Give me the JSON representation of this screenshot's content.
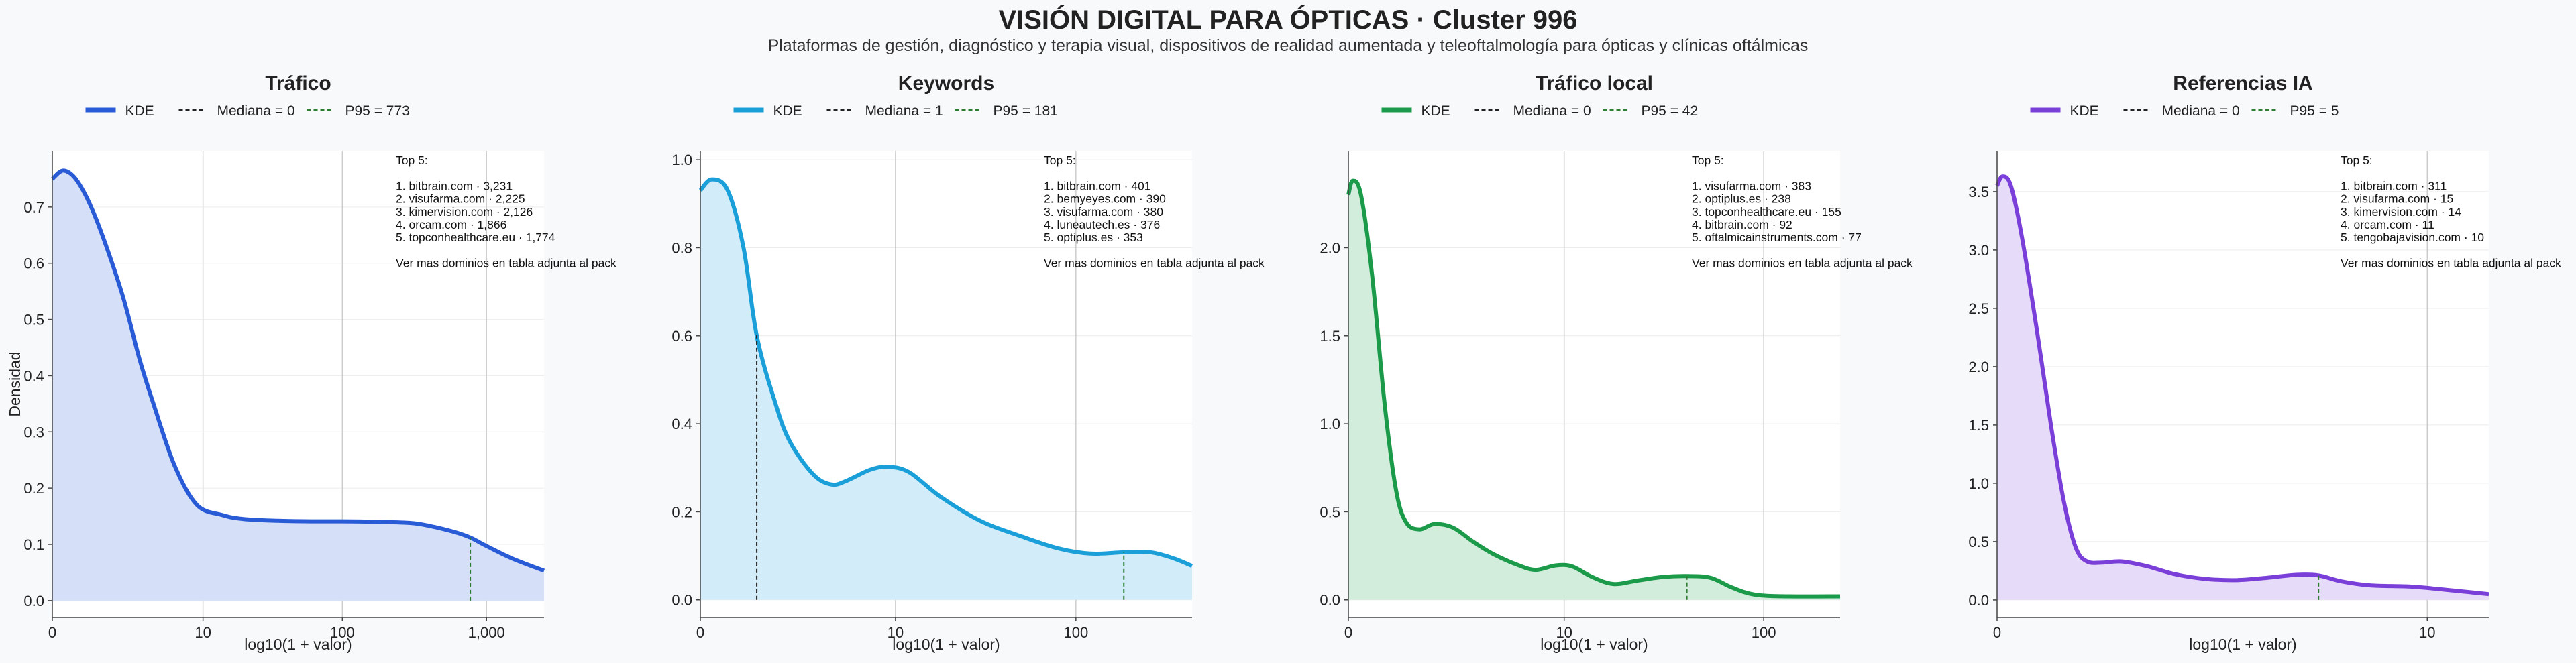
{
  "title": "VISIÓN DIGITAL PARA ÓPTICAS · Cluster 996",
  "subtitle": "Plataformas de gestión, diagnóstico y terapia visual, dispositivos de realidad aumentada y teleoftalmología para ópticas y clínicas oftálmicas",
  "colors": {
    "background": "#f7f9fb",
    "median_line": "#222222",
    "p95_line": "#2e7d32",
    "grid": "#cccccc"
  },
  "chart_data": [
    {
      "type": "area",
      "title": "Tráfico",
      "color": "#2a5bd7",
      "fill": "#d5dff7",
      "ylabel": "Densidad",
      "xlabel": "log10(1 + valor)",
      "x_scale": "log10(1 + x)",
      "xlim": [
        0,
        2500
      ],
      "ylim": [
        -0.03,
        0.8
      ],
      "yticks": [
        0.0,
        0.1,
        0.2,
        0.3,
        0.4,
        0.5,
        0.6,
        0.7
      ],
      "xticks": [
        0,
        10,
        100,
        1000
      ],
      "xtick_labels": [
        "0",
        "10",
        "100",
        "1,000"
      ],
      "legend": {
        "kde": "KDE",
        "median": "Mediana = 0",
        "p95": "P95 = 773"
      },
      "median": 0,
      "p95": 773,
      "kde_points": [
        [
          0,
          0.75
        ],
        [
          0.2,
          0.765
        ],
        [
          0.5,
          0.745
        ],
        [
          1,
          0.68
        ],
        [
          2,
          0.55
        ],
        [
          3,
          0.43
        ],
        [
          4,
          0.35
        ],
        [
          6,
          0.24
        ],
        [
          9,
          0.17
        ],
        [
          14,
          0.152
        ],
        [
          20,
          0.145
        ],
        [
          35,
          0.142
        ],
        [
          60,
          0.141
        ],
        [
          100,
          0.141
        ],
        [
          180,
          0.14
        ],
        [
          300,
          0.138
        ],
        [
          400,
          0.133
        ],
        [
          600,
          0.122
        ],
        [
          773,
          0.112
        ],
        [
          1000,
          0.097
        ],
        [
          1500,
          0.075
        ],
        [
          2500,
          0.053
        ]
      ],
      "annotation": [
        "Top 5:",
        "",
        "1. bitbrain.com · 3,231",
        "2. visufarma.com · 2,225",
        "3. kimervision.com · 2,126",
        "4. orcam.com · 1,866",
        "5. topconhealthcare.eu · 1,774",
        "",
        "Ver mas dominios en tabla adjunta al pack"
      ]
    },
    {
      "type": "area",
      "title": "Keywords",
      "color": "#1a9fd9",
      "fill": "#d2edf9",
      "ylabel": "",
      "xlabel": "log10(1 + valor)",
      "x_scale": "log10(1 + x)",
      "xlim": [
        0,
        420
      ],
      "ylim": [
        -0.04,
        1.02
      ],
      "yticks": [
        0.0,
        0.2,
        0.4,
        0.6,
        0.8,
        1.0
      ],
      "xticks": [
        0,
        10,
        100
      ],
      "xtick_labels": [
        "0",
        "10",
        "100"
      ],
      "legend": {
        "kde": "KDE",
        "median": "Mediana = 1",
        "p95": "P95 = 181"
      },
      "median": 1,
      "p95": 181,
      "kde_points": [
        [
          0,
          0.93
        ],
        [
          0.15,
          0.955
        ],
        [
          0.4,
          0.93
        ],
        [
          0.7,
          0.8
        ],
        [
          1,
          0.6
        ],
        [
          1.5,
          0.45
        ],
        [
          2,
          0.36
        ],
        [
          3,
          0.285
        ],
        [
          4,
          0.262
        ],
        [
          5,
          0.27
        ],
        [
          7,
          0.295
        ],
        [
          9,
          0.302
        ],
        [
          12,
          0.29
        ],
        [
          18,
          0.235
        ],
        [
          30,
          0.18
        ],
        [
          50,
          0.145
        ],
        [
          80,
          0.117
        ],
        [
          120,
          0.105
        ],
        [
          181,
          0.108
        ],
        [
          250,
          0.108
        ],
        [
          330,
          0.095
        ],
        [
          420,
          0.077
        ]
      ],
      "annotation": [
        "Top 5:",
        "",
        "1. bitbrain.com · 401",
        "2. bemyeyes.com · 390",
        "3. visufarma.com · 380",
        "4. luneautech.es · 376",
        "5. optiplus.es · 353",
        "",
        "Ver mas dominios en tabla adjunta al pack"
      ]
    },
    {
      "type": "area",
      "title": "Tráfico local",
      "color": "#1b9a4a",
      "fill": "#d2eddc",
      "ylabel": "",
      "xlabel": "log10(1 + valor)",
      "x_scale": "log10(1 + x)",
      "xlim": [
        0,
        235
      ],
      "ylim": [
        -0.1,
        2.55
      ],
      "yticks": [
        0.0,
        0.5,
        1.0,
        1.5,
        2.0
      ],
      "xticks": [
        0,
        10,
        100
      ],
      "xtick_labels": [
        "0",
        "10",
        "100"
      ],
      "legend": {
        "kde": "KDE",
        "median": "Mediana = 0",
        "p95": "P95 = 42"
      },
      "median": 0,
      "p95": 42,
      "kde_points": [
        [
          0,
          2.3
        ],
        [
          0.05,
          2.38
        ],
        [
          0.15,
          2.3
        ],
        [
          0.3,
          1.85
        ],
        [
          0.5,
          1.1
        ],
        [
          0.7,
          0.62
        ],
        [
          0.9,
          0.44
        ],
        [
          1.2,
          0.4
        ],
        [
          1.6,
          0.43
        ],
        [
          2.2,
          0.41
        ],
        [
          3,
          0.33
        ],
        [
          4,
          0.26
        ],
        [
          5.5,
          0.2
        ],
        [
          7,
          0.17
        ],
        [
          9,
          0.195
        ],
        [
          11,
          0.19
        ],
        [
          14,
          0.13
        ],
        [
          18,
          0.09
        ],
        [
          24,
          0.11
        ],
        [
          32,
          0.13
        ],
        [
          42,
          0.135
        ],
        [
          55,
          0.125
        ],
        [
          70,
          0.07
        ],
        [
          90,
          0.03
        ],
        [
          130,
          0.02
        ],
        [
          235,
          0.02
        ]
      ],
      "annotation": [
        "Top 5:",
        "",
        "1. visufarma.com · 383",
        "2. optiplus.es · 238",
        "3. topconhealthcare.eu · 155",
        "4. bitbrain.com · 92",
        "5. oftalmicainstruments.com · 77",
        "",
        "Ver mas dominios en tabla adjunta al pack"
      ]
    },
    {
      "type": "area",
      "title": "Referencias IA",
      "color": "#7b3fd9",
      "fill": "#e6dbf8",
      "ylabel": "",
      "xlabel": "log10(1 + valor)",
      "x_scale": "log10(1 + x)",
      "xlim": [
        0,
        14.5
      ],
      "ylim": [
        -0.15,
        3.85
      ],
      "yticks": [
        0.0,
        0.5,
        1.0,
        1.5,
        2.0,
        2.5,
        3.0,
        3.5
      ],
      "xticks": [
        0,
        10
      ],
      "xtick_labels": [
        "0",
        "10"
      ],
      "legend": {
        "kde": "KDE",
        "median": "Mediana = 0",
        "p95": "P95 = 5"
      },
      "median": 0,
      "p95": 5,
      "kde_points": [
        [
          0,
          3.55
        ],
        [
          0.03,
          3.63
        ],
        [
          0.08,
          3.55
        ],
        [
          0.15,
          3.1
        ],
        [
          0.25,
          2.3
        ],
        [
          0.35,
          1.5
        ],
        [
          0.45,
          0.85
        ],
        [
          0.55,
          0.45
        ],
        [
          0.65,
          0.33
        ],
        [
          0.8,
          0.32
        ],
        [
          1,
          0.33
        ],
        [
          1.3,
          0.29
        ],
        [
          1.7,
          0.22
        ],
        [
          2.2,
          0.18
        ],
        [
          2.8,
          0.17
        ],
        [
          3.5,
          0.19
        ],
        [
          4.3,
          0.215
        ],
        [
          5,
          0.21
        ],
        [
          5.8,
          0.16
        ],
        [
          7,
          0.125
        ],
        [
          9,
          0.115
        ],
        [
          11,
          0.09
        ],
        [
          14.5,
          0.05
        ]
      ],
      "annotation": [
        "Top 5:",
        "",
        "1. bitbrain.com · 311",
        "2. visufarma.com · 15",
        "3. kimervision.com · 14",
        "4. orcam.com · 11",
        "5. tengobajavision.com · 10",
        "",
        "Ver mas dominios en tabla adjunta al pack"
      ]
    }
  ]
}
